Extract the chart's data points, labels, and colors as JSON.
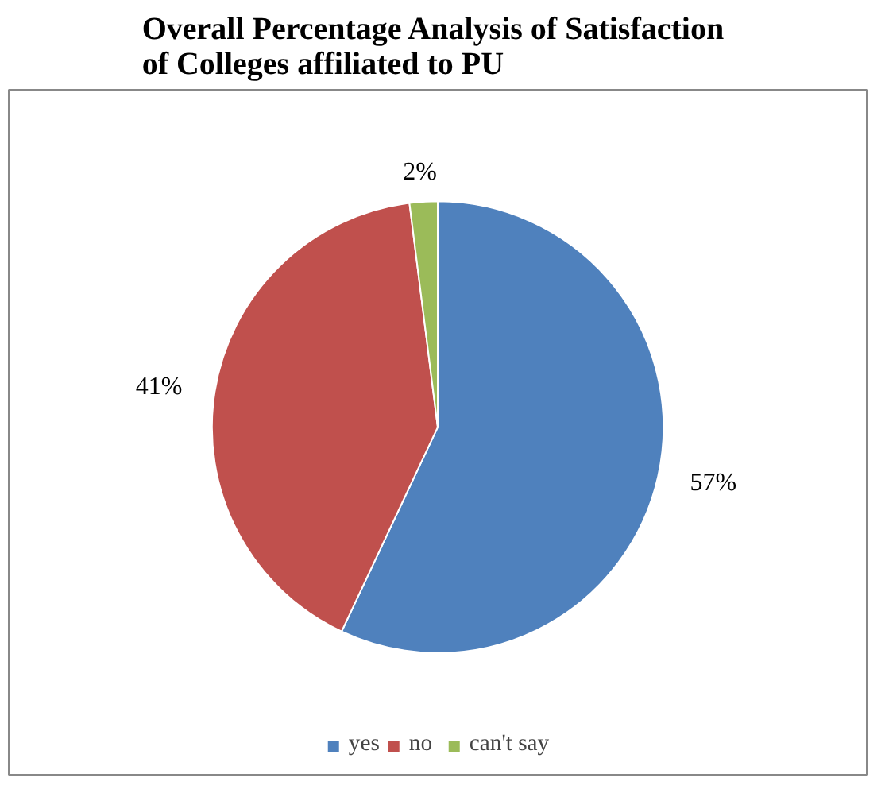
{
  "chart_data": {
    "type": "pie",
    "title": "Overall Percentage Analysis of  Satisfaction\nof Colleges affiliated to PU",
    "categories": [
      "yes",
      "no",
      "can't say"
    ],
    "values": [
      57,
      41,
      2
    ],
    "colors": [
      "#4f81bd",
      "#c0504d",
      "#9bbb59"
    ],
    "value_labels": [
      "57%",
      "41%",
      "2%"
    ],
    "legend": "bottom"
  }
}
